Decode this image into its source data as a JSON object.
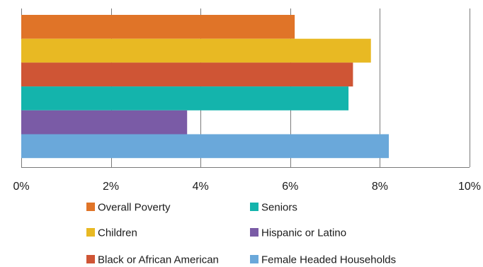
{
  "chart_data": {
    "type": "bar",
    "orientation": "horizontal",
    "title": "",
    "xlabel": "",
    "ylabel": "",
    "xlim": [
      0,
      10
    ],
    "x_ticks": [
      0,
      2,
      4,
      6,
      8,
      10
    ],
    "x_tick_labels": [
      "0%",
      "2%",
      "4%",
      "6%",
      "8%",
      "10%"
    ],
    "unit": "%",
    "grid": "vertical",
    "legend_position": "bottom",
    "series": [
      {
        "name": "Overall Poverty",
        "value": 6.1,
        "color": "#E07428"
      },
      {
        "name": "Children",
        "value": 7.8,
        "color": "#E8B923"
      },
      {
        "name": "Black or African American",
        "value": 7.4,
        "color": "#CF5535"
      },
      {
        "name": "Seniors",
        "value": 7.3,
        "color": "#14B4AC"
      },
      {
        "name": "Hispanic or Latino",
        "value": 3.7,
        "color": "#7A5BA6"
      },
      {
        "name": "Female Headed Households",
        "value": 8.2,
        "color": "#6AA8DA"
      }
    ]
  }
}
